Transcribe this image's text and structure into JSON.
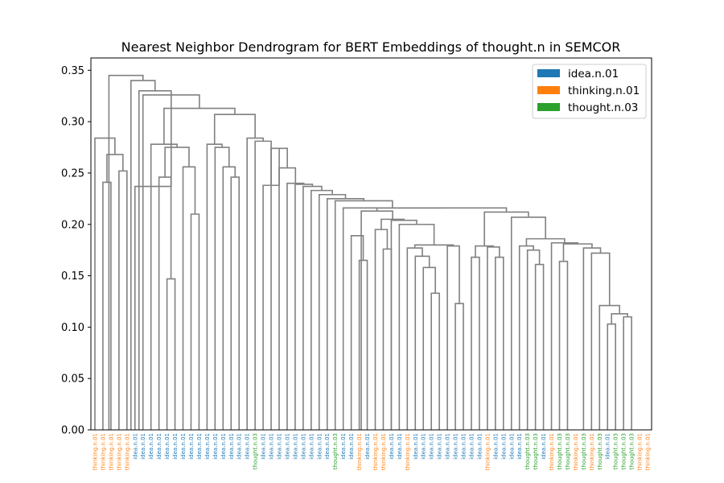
{
  "chart_data": {
    "type": "dendrogram",
    "title": "Nearest Neighbor Dendrogram for BERT Embeddings of thought.n in SEMCOR",
    "xlabel": "",
    "ylabel": "",
    "ylim": [
      0,
      0.362
    ],
    "yticks": [
      0.0,
      0.05,
      0.1,
      0.15,
      0.2,
      0.25,
      0.3,
      0.35
    ],
    "ytick_labels": [
      "0.00",
      "0.05",
      "0.10",
      "0.15",
      "0.20",
      "0.25",
      "0.30",
      "0.35"
    ],
    "link_color": "#808080",
    "legend": {
      "position": "top-right",
      "entries": [
        {
          "label": "idea.n.01",
          "color": "#1f77b4"
        },
        {
          "label": "thinking.n.01",
          "color": "#ff7f0e"
        },
        {
          "label": "thought.n.03",
          "color": "#2ca02c"
        }
      ]
    },
    "leaves": [
      {
        "label": "thinking.n.01",
        "color": "#ff7f0e"
      },
      {
        "label": "thinking.n.01",
        "color": "#ff7f0e"
      },
      {
        "label": "thinking.n.01",
        "color": "#ff7f0e"
      },
      {
        "label": "thinking.n.01",
        "color": "#ff7f0e"
      },
      {
        "label": "thinking.n.01",
        "color": "#ff7f0e"
      },
      {
        "label": "idea.n.01",
        "color": "#1f77b4"
      },
      {
        "label": "idea.n.01",
        "color": "#1f77b4"
      },
      {
        "label": "idea.n.01",
        "color": "#1f77b4"
      },
      {
        "label": "idea.n.01",
        "color": "#1f77b4"
      },
      {
        "label": "idea.n.01",
        "color": "#1f77b4"
      },
      {
        "label": "idea.n.01",
        "color": "#1f77b4"
      },
      {
        "label": "idea.n.01",
        "color": "#1f77b4"
      },
      {
        "label": "idea.n.01",
        "color": "#1f77b4"
      },
      {
        "label": "idea.n.01",
        "color": "#1f77b4"
      },
      {
        "label": "idea.n.01",
        "color": "#1f77b4"
      },
      {
        "label": "idea.n.01",
        "color": "#1f77b4"
      },
      {
        "label": "idea.n.01",
        "color": "#1f77b4"
      },
      {
        "label": "idea.n.01",
        "color": "#1f77b4"
      },
      {
        "label": "idea.n.01",
        "color": "#1f77b4"
      },
      {
        "label": "idea.n.01",
        "color": "#1f77b4"
      },
      {
        "label": "thought.n.03",
        "color": "#2ca02c"
      },
      {
        "label": "idea.n.01",
        "color": "#1f77b4"
      },
      {
        "label": "idea.n.01",
        "color": "#1f77b4"
      },
      {
        "label": "idea.n.01",
        "color": "#1f77b4"
      },
      {
        "label": "idea.n.01",
        "color": "#1f77b4"
      },
      {
        "label": "idea.n.01",
        "color": "#1f77b4"
      },
      {
        "label": "idea.n.01",
        "color": "#1f77b4"
      },
      {
        "label": "idea.n.01",
        "color": "#1f77b4"
      },
      {
        "label": "idea.n.01",
        "color": "#1f77b4"
      },
      {
        "label": "idea.n.01",
        "color": "#1f77b4"
      },
      {
        "label": "thought.n.03",
        "color": "#2ca02c"
      },
      {
        "label": "idea.n.01",
        "color": "#1f77b4"
      },
      {
        "label": "idea.n.01",
        "color": "#1f77b4"
      },
      {
        "label": "thinking.n.01",
        "color": "#ff7f0e"
      },
      {
        "label": "idea.n.01",
        "color": "#1f77b4"
      },
      {
        "label": "thinking.n.01",
        "color": "#ff7f0e"
      },
      {
        "label": "thinking.n.01",
        "color": "#ff7f0e"
      },
      {
        "label": "idea.n.01",
        "color": "#1f77b4"
      },
      {
        "label": "idea.n.01",
        "color": "#1f77b4"
      },
      {
        "label": "thinking.n.01",
        "color": "#ff7f0e"
      },
      {
        "label": "idea.n.01",
        "color": "#1f77b4"
      },
      {
        "label": "idea.n.01",
        "color": "#1f77b4"
      },
      {
        "label": "idea.n.01",
        "color": "#1f77b4"
      },
      {
        "label": "idea.n.01",
        "color": "#1f77b4"
      },
      {
        "label": "idea.n.01",
        "color": "#1f77b4"
      },
      {
        "label": "idea.n.01",
        "color": "#1f77b4"
      },
      {
        "label": "idea.n.01",
        "color": "#1f77b4"
      },
      {
        "label": "idea.n.01",
        "color": "#1f77b4"
      },
      {
        "label": "idea.n.01",
        "color": "#1f77b4"
      },
      {
        "label": "thinking.n.01",
        "color": "#ff7f0e"
      },
      {
        "label": "idea.n.01",
        "color": "#1f77b4"
      },
      {
        "label": "idea.n.01",
        "color": "#1f77b4"
      },
      {
        "label": "idea.n.01",
        "color": "#1f77b4"
      },
      {
        "label": "idea.n.01",
        "color": "#1f77b4"
      },
      {
        "label": "thought.n.03",
        "color": "#2ca02c"
      },
      {
        "label": "thought.n.03",
        "color": "#2ca02c"
      },
      {
        "label": "idea.n.01",
        "color": "#1f77b4"
      },
      {
        "label": "thinking.n.01",
        "color": "#ff7f0e"
      },
      {
        "label": "thought.n.03",
        "color": "#2ca02c"
      },
      {
        "label": "thought.n.03",
        "color": "#2ca02c"
      },
      {
        "label": "thinking.n.01",
        "color": "#ff7f0e"
      },
      {
        "label": "thought.n.03",
        "color": "#2ca02c"
      },
      {
        "label": "thinking.n.01",
        "color": "#ff7f0e"
      },
      {
        "label": "thought.n.03",
        "color": "#2ca02c"
      },
      {
        "label": "idea.n.01",
        "color": "#1f77b4"
      },
      {
        "label": "thought.n.03",
        "color": "#2ca02c"
      },
      {
        "label": "thought.n.03",
        "color": "#2ca02c"
      },
      {
        "label": "thought.n.03",
        "color": "#2ca02c"
      },
      {
        "label": "thinking.n.01",
        "color": "#ff7f0e"
      },
      {
        "label": "thinking.n.01",
        "color": "#ff7f0e"
      }
    ],
    "links": [
      {
        "l": 1,
        "r": 2,
        "h": 0.241
      },
      {
        "l": 3,
        "r": 4,
        "h": 0.252
      },
      {
        "l": 1.5,
        "r": 3.5,
        "h": 0.268
      },
      {
        "l": 0,
        "r": 2.5,
        "h": 0.284
      },
      {
        "l": 9,
        "r": 10,
        "h": 0.147
      },
      {
        "l": 8,
        "r": 9.5,
        "h": 0.246
      },
      {
        "l": 12,
        "r": 13,
        "h": 0.21
      },
      {
        "l": 11,
        "r": 12.5,
        "h": 0.256
      },
      {
        "l": 8.75,
        "r": 11.75,
        "h": 0.275
      },
      {
        "l": 7,
        "r": 10.25,
        "h": 0.278
      },
      {
        "l": 33,
        "r": 34,
        "h": 0.165
      },
      {
        "l": 32,
        "r": 33.5,
        "h": 0.189
      },
      {
        "l": 36,
        "r": 37,
        "h": 0.176
      },
      {
        "l": 35,
        "r": 36.5,
        "h": 0.195
      },
      {
        "l": 42,
        "r": 43,
        "h": 0.133
      },
      {
        "l": 41,
        "r": 42.5,
        "h": 0.158
      },
      {
        "l": 40,
        "r": 41.75,
        "h": 0.169
      },
      {
        "l": 39,
        "r": 40.875,
        "h": 0.177
      },
      {
        "l": 45,
        "r": 46,
        "h": 0.123
      },
      {
        "l": 44,
        "r": 45.5,
        "h": 0.179
      },
      {
        "l": 39.9375,
        "r": 44.75,
        "h": 0.18
      },
      {
        "l": 38,
        "r": 42.34375,
        "h": 0.2
      },
      {
        "l": 47,
        "r": 48,
        "h": 0.168
      },
      {
        "l": 55,
        "r": 56,
        "h": 0.161
      },
      {
        "l": 54,
        "r": 55.5,
        "h": 0.175
      },
      {
        "l": 53,
        "r": 54.75,
        "h": 0.179
      },
      {
        "l": 58,
        "r": 59,
        "h": 0.164
      },
      {
        "l": 64,
        "r": 65,
        "h": 0.103
      },
      {
        "l": 66,
        "r": 67,
        "h": 0.11
      },
      {
        "l": 64.5,
        "r": 66.5,
        "h": 0.113
      },
      {
        "l": 63,
        "r": 65.5,
        "h": 0.121
      },
      {
        "l": 62,
        "r": 64.25,
        "h": 0.172
      },
      {
        "l": 61,
        "r": 63.125,
        "h": 0.177
      },
      {
        "l": 58.5,
        "r": 62.0625,
        "h": 0.181
      },
      {
        "l": 57,
        "r": 60.28125,
        "h": 0.182
      },
      {
        "l": 53.875,
        "r": 58.640625,
        "h": 0.186
      },
      {
        "l": 52,
        "r": 56.2578125,
        "h": 0.207
      },
      {
        "l": 37,
        "r": 40.171875,
        "h": 0.204
      },
      {
        "l": 35.75,
        "r": 38.5859375,
        "h": 0.205
      },
      {
        "l": 33.25,
        "r": 37.16796875,
        "h": 0.213
      },
      {
        "l": 50,
        "r": 51,
        "h": 0.168
      },
      {
        "l": 49,
        "r": 50.5,
        "h": 0.178
      },
      {
        "l": 47.5,
        "r": 49.75,
        "h": 0.179
      },
      {
        "l": 48.625,
        "r": 54.12890625,
        "h": 0.212
      },
      {
        "l": 35.208984375,
        "r": 51.376953125,
        "h": 0.216
      },
      {
        "l": 31,
        "r": 43.29296875,
        "h": 0.216
      },
      {
        "l": 30,
        "r": 37.146484375,
        "h": 0.223
      },
      {
        "l": 29,
        "r": 33.5732421875,
        "h": 0.225
      },
      {
        "l": 28,
        "r": 31.28662109375,
        "h": 0.229
      },
      {
        "l": 27,
        "r": 29.643310546875,
        "h": 0.233
      },
      {
        "l": 26,
        "r": 28.3216552734375,
        "h": 0.237
      },
      {
        "l": 25,
        "r": 27.16082763671875,
        "h": 0.239
      },
      {
        "l": 24,
        "r": 26.080413818359375,
        "h": 0.24
      },
      {
        "l": 23,
        "r": 25.040206909179688,
        "h": 0.255
      },
      {
        "l": 22,
        "r": 24.020103454589844,
        "h": 0.274
      },
      {
        "l": 21,
        "r": 23.010051727294922,
        "h": 0.238
      },
      {
        "l": 20,
        "r": 22.00502586364746,
        "h": 0.281
      },
      {
        "l": 19,
        "r": 21.00251293182373,
        "h": 0.284
      },
      {
        "l": 17,
        "r": 18,
        "h": 0.246
      },
      {
        "l": 16,
        "r": 17.5,
        "h": 0.256
      },
      {
        "l": 15,
        "r": 16.75,
        "h": 0.275
      },
      {
        "l": 14,
        "r": 15.875,
        "h": 0.278
      },
      {
        "l": 14.9375,
        "r": 20.001256465911865,
        "h": 0.307
      },
      {
        "l": 8.625,
        "r": 17.469378232955933,
        "h": 0.313
      },
      {
        "l": 6,
        "r": 13.047189116477966,
        "h": 0.326
      },
      {
        "l": 5,
        "r": 9.523594558238983,
        "h": 0.237
      },
      {
        "l": 5.5,
        "r": 9.523594558238983,
        "h": 0.33
      },
      {
        "l": 4.5,
        "r": 7.511797279119492,
        "h": 0.34
      },
      {
        "l": 1.75,
        "r": 6.005898639559746,
        "h": 0.345
      }
    ]
  }
}
